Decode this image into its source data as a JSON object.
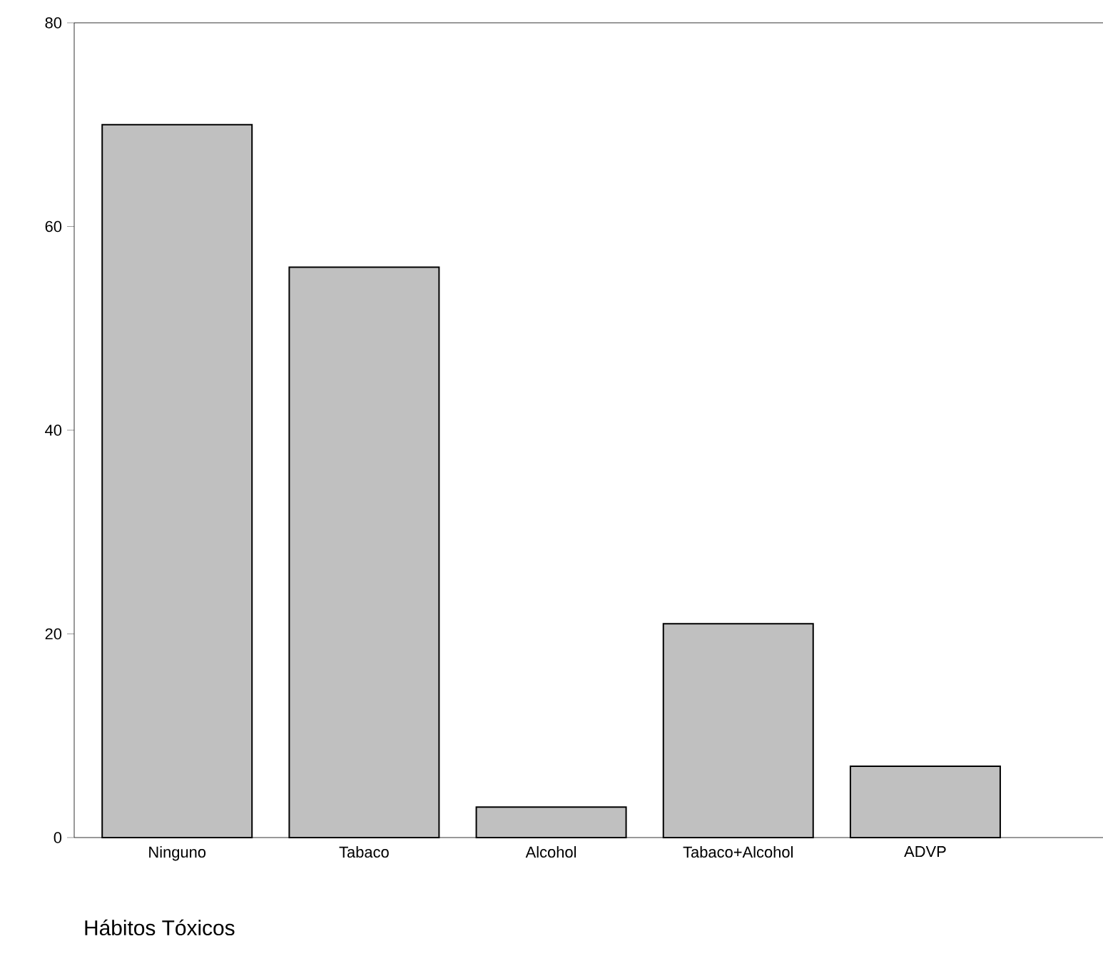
{
  "chart_data": {
    "type": "bar",
    "xlabel": "Hábitos Tóxicos",
    "categories": [
      "Ninguno",
      "Tabaco",
      "Alcohol",
      "Tabaco+Alcohol",
      "ADVP"
    ],
    "values": [
      70,
      56,
      3,
      21,
      7
    ],
    "color": "#c0c0c0",
    "ylim": [
      0,
      80
    ],
    "yticks": [
      0,
      20,
      40,
      60,
      80
    ],
    "grid": false
  }
}
